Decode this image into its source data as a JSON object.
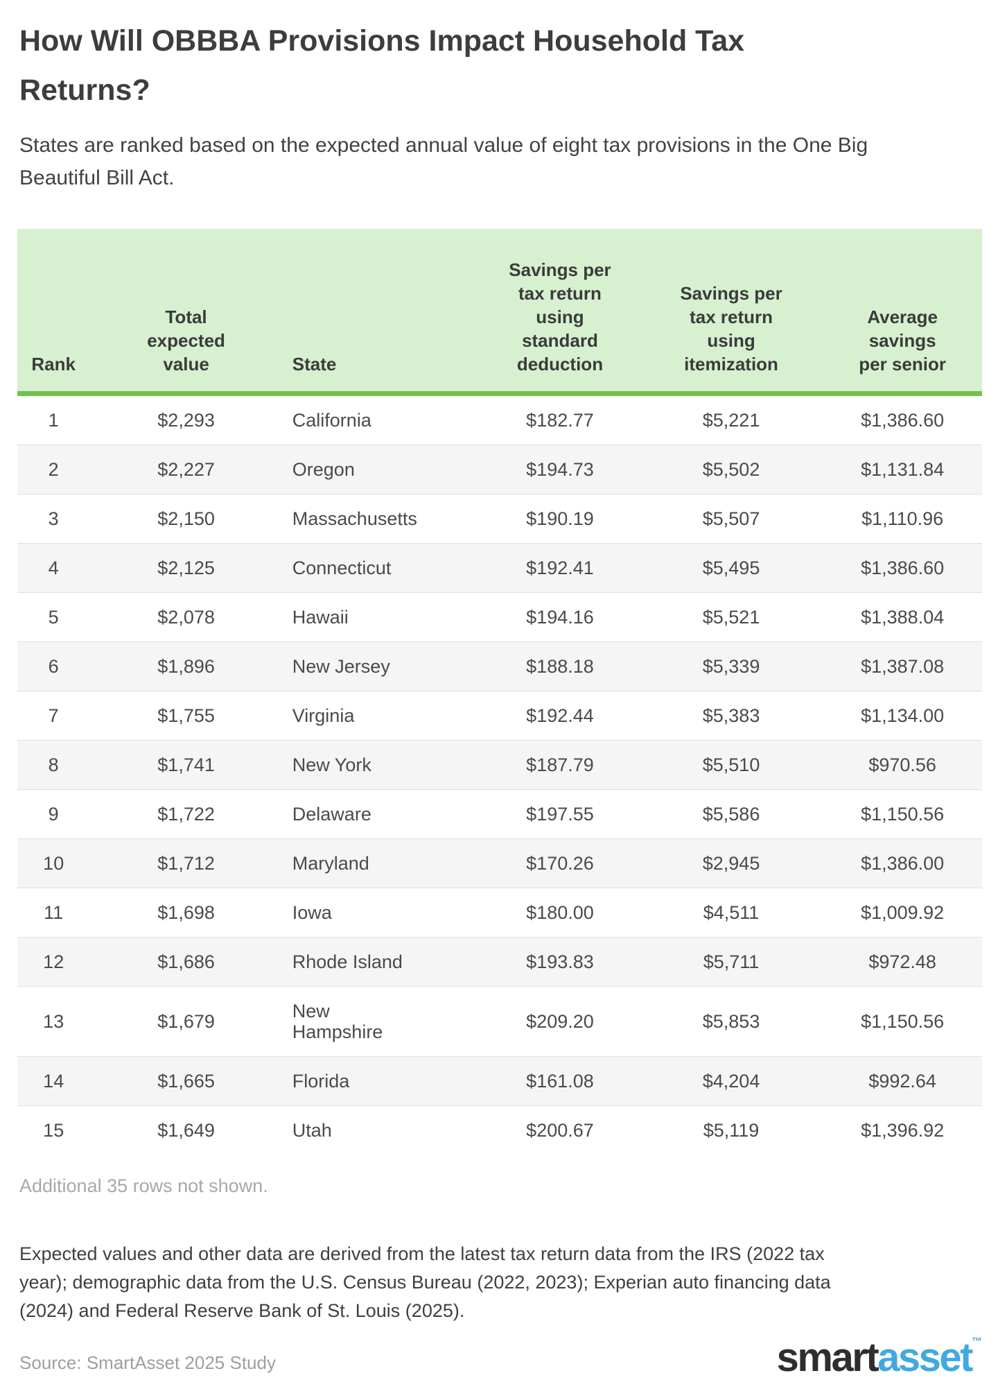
{
  "header": {
    "title": "How Will OBBBA Provisions Impact Household Tax Returns?",
    "subtitle": "States are ranked based on the expected annual value of eight tax provisions in the One Big Beautiful Bill Act."
  },
  "chart_data": {
    "type": "table",
    "title": "How Will OBBBA Provisions Impact Household Tax Returns?",
    "columns": [
      {
        "key": "rank",
        "label": "Rank",
        "align": "center"
      },
      {
        "key": "total_expected_value",
        "label": "Total expected value",
        "align": "center"
      },
      {
        "key": "state",
        "label": "State",
        "align": "left"
      },
      {
        "key": "savings_standard_deduction",
        "label": "Savings per tax return using standard deduction",
        "align": "center"
      },
      {
        "key": "savings_itemization",
        "label": "Savings per tax return using itemization",
        "align": "center"
      },
      {
        "key": "avg_savings_per_senior",
        "label": "Average savings per senior",
        "align": "center"
      }
    ],
    "rows": [
      {
        "rank": "1",
        "total_expected_value": "$2,293",
        "state": "California",
        "savings_standard_deduction": "$182.77",
        "savings_itemization": "$5,221",
        "avg_savings_per_senior": "$1,386.60"
      },
      {
        "rank": "2",
        "total_expected_value": "$2,227",
        "state": "Oregon",
        "savings_standard_deduction": "$194.73",
        "savings_itemization": "$5,502",
        "avg_savings_per_senior": "$1,131.84"
      },
      {
        "rank": "3",
        "total_expected_value": "$2,150",
        "state": "Massachusetts",
        "savings_standard_deduction": "$190.19",
        "savings_itemization": "$5,507",
        "avg_savings_per_senior": "$1,110.96"
      },
      {
        "rank": "4",
        "total_expected_value": "$2,125",
        "state": "Connecticut",
        "savings_standard_deduction": "$192.41",
        "savings_itemization": "$5,495",
        "avg_savings_per_senior": "$1,386.60"
      },
      {
        "rank": "5",
        "total_expected_value": "$2,078",
        "state": "Hawaii",
        "savings_standard_deduction": "$194.16",
        "savings_itemization": "$5,521",
        "avg_savings_per_senior": "$1,388.04"
      },
      {
        "rank": "6",
        "total_expected_value": "$1,896",
        "state": "New Jersey",
        "savings_standard_deduction": "$188.18",
        "savings_itemization": "$5,339",
        "avg_savings_per_senior": "$1,387.08"
      },
      {
        "rank": "7",
        "total_expected_value": "$1,755",
        "state": "Virginia",
        "savings_standard_deduction": "$192.44",
        "savings_itemization": "$5,383",
        "avg_savings_per_senior": "$1,134.00"
      },
      {
        "rank": "8",
        "total_expected_value": "$1,741",
        "state": "New York",
        "savings_standard_deduction": "$187.79",
        "savings_itemization": "$5,510",
        "avg_savings_per_senior": "$970.56"
      },
      {
        "rank": "9",
        "total_expected_value": "$1,722",
        "state": "Delaware",
        "savings_standard_deduction": "$197.55",
        "savings_itemization": "$5,586",
        "avg_savings_per_senior": "$1,150.56"
      },
      {
        "rank": "10",
        "total_expected_value": "$1,712",
        "state": "Maryland",
        "savings_standard_deduction": "$170.26",
        "savings_itemization": "$2,945",
        "avg_savings_per_senior": "$1,386.00"
      },
      {
        "rank": "11",
        "total_expected_value": "$1,698",
        "state": "Iowa",
        "savings_standard_deduction": "$180.00",
        "savings_itemization": "$4,511",
        "avg_savings_per_senior": "$1,009.92"
      },
      {
        "rank": "12",
        "total_expected_value": "$1,686",
        "state": "Rhode Island",
        "savings_standard_deduction": "$193.83",
        "savings_itemization": "$5,711",
        "avg_savings_per_senior": "$972.48"
      },
      {
        "rank": "13",
        "total_expected_value": "$1,679",
        "state": "New Hampshire",
        "savings_standard_deduction": "$209.20",
        "savings_itemization": "$5,853",
        "avg_savings_per_senior": "$1,150.56"
      },
      {
        "rank": "14",
        "total_expected_value": "$1,665",
        "state": "Florida",
        "savings_standard_deduction": "$161.08",
        "savings_itemization": "$4,204",
        "avg_savings_per_senior": "$992.64"
      },
      {
        "rank": "15",
        "total_expected_value": "$1,649",
        "state": "Utah",
        "savings_standard_deduction": "$200.67",
        "savings_itemization": "$5,119",
        "avg_savings_per_senior": "$1,396.92"
      }
    ],
    "layout": {
      "header_background": "#d6f0d0",
      "header_border": "#6fc04c",
      "stripe_background": "#f5f5f5",
      "grid": "row-dividers"
    }
  },
  "footer": {
    "additional_note": "Additional 35 rows not shown.",
    "methodology": "Expected values and other data are derived from the latest tax return data from the IRS (2022 tax year); demographic data from the U.S. Census Bureau (2022, 2023); Experian auto financing data (2024) and Federal Reserve Bank of St. Louis (2025).",
    "source": "Source: SmartAsset 2025 Study",
    "logo": {
      "smart": "smart",
      "asset": "asset",
      "tm": "TM"
    }
  },
  "colors": {
    "title_text": "#3d3d3d",
    "body_text": "#4a4a4a",
    "muted_text": "#a8a8a8",
    "source_text": "#9e9e9e",
    "header_green": "#d6f0d0",
    "border_green": "#6fc04c",
    "stripe_gray": "#f5f5f5",
    "divider_gray": "#e0e0e0",
    "logo_dark": "#2e2e2e",
    "logo_blue": "#41a9e0"
  }
}
